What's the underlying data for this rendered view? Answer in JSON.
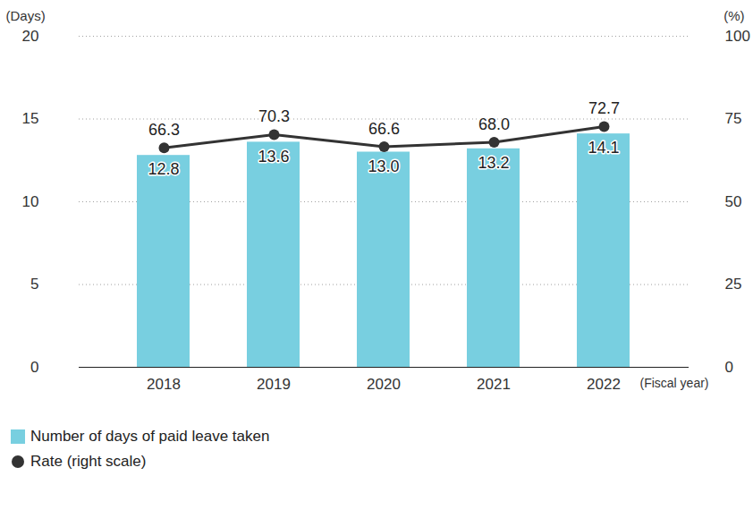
{
  "chart_data": {
    "type": "bar",
    "x_label": "(Fiscal year)",
    "y_label": "(Days)",
    "y2_label": "(%)",
    "categories": [
      "2018",
      "2019",
      "2020",
      "2021",
      "2022"
    ],
    "series": [
      {
        "name": "Number of days of paid leave taken",
        "type": "bar",
        "color": "#78cfe0",
        "values": [
          12.8,
          13.6,
          13.0,
          13.2,
          14.1
        ],
        "value_labels": [
          "12.8",
          "13.6",
          "13.0",
          "13.2",
          "14.1"
        ]
      },
      {
        "name": "Rate (right scale)",
        "type": "line",
        "color": "#333333",
        "marker": "circle",
        "axis": "y2",
        "values": [
          66.3,
          70.3,
          66.6,
          68.0,
          72.7
        ],
        "value_labels": [
          "66.3",
          "70.3",
          "66.6",
          "68.0",
          "72.7"
        ]
      }
    ],
    "ylim": [
      0,
      20
    ],
    "yticks": [
      0,
      5,
      10,
      15,
      20
    ],
    "y2lim": [
      0,
      100
    ],
    "y2ticks": [
      0,
      25,
      50,
      75,
      100
    ],
    "grid": true,
    "data_labels": true,
    "legend": "bottom-left"
  }
}
